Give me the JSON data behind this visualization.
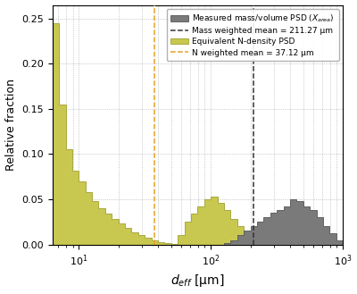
{
  "xlabel": "$d_{eff}$ [μm]",
  "ylabel": "Relative fraction",
  "xlim_log": [
    6.3,
    1000
  ],
  "ylim": [
    0,
    0.265
  ],
  "yticks": [
    0.0,
    0.05,
    0.1,
    0.15,
    0.2,
    0.25
  ],
  "mass_mean": 211.27,
  "n_mean": 37.12,
  "gray_color": "#7a7a7a",
  "yellow_color": "#c8c850",
  "gray_edge": "#555555",
  "yellow_edge": "#a0a030",
  "mass_line_color": "#333333",
  "n_line_color": "#e8a020",
  "legend_label_gray": "Measured mass/volume PSD ($X_{area}$)",
  "legend_label_dashed": "Mass weighted mean = 211.27 μm",
  "legend_label_yellow": "Equivalent N-density PSD",
  "legend_label_dotted": "N weighted mean = 37.12 μm",
  "gray_edges": [
    100,
    112,
    126,
    141,
    158,
    178,
    200,
    224,
    251,
    282,
    316,
    355,
    398,
    447,
    501,
    562,
    631,
    708,
    794,
    891,
    1000
  ],
  "gray_heights": [
    0.0,
    0.0,
    0.002,
    0.005,
    0.01,
    0.015,
    0.02,
    0.025,
    0.03,
    0.035,
    0.038,
    0.042,
    0.05,
    0.048,
    0.042,
    0.038,
    0.03,
    0.02,
    0.012,
    0.005
  ],
  "yellow_edges": [
    6.3,
    7.1,
    8.0,
    8.9,
    10.0,
    11.2,
    12.6,
    14.1,
    15.8,
    17.8,
    20.0,
    22.4,
    25.1,
    28.2,
    31.6,
    35.5,
    39.8,
    44.7,
    50.1,
    56.2,
    63.1,
    70.8,
    79.4,
    89.1,
    100.0,
    112.2,
    125.9,
    141.3,
    158.5,
    177.8,
    199.5,
    223.9,
    251.2,
    282.0,
    316.2,
    355.0,
    398.0
  ],
  "yellow_heights": [
    0.245,
    0.155,
    0.105,
    0.082,
    0.07,
    0.058,
    0.048,
    0.04,
    0.034,
    0.028,
    0.023,
    0.018,
    0.013,
    0.01,
    0.007,
    0.005,
    0.003,
    0.002,
    0.001,
    0.01,
    0.025,
    0.034,
    0.042,
    0.05,
    0.053,
    0.046,
    0.038,
    0.028,
    0.02,
    0.014,
    0.009,
    0.005,
    0.002,
    0.001,
    0.0,
    0.0
  ]
}
